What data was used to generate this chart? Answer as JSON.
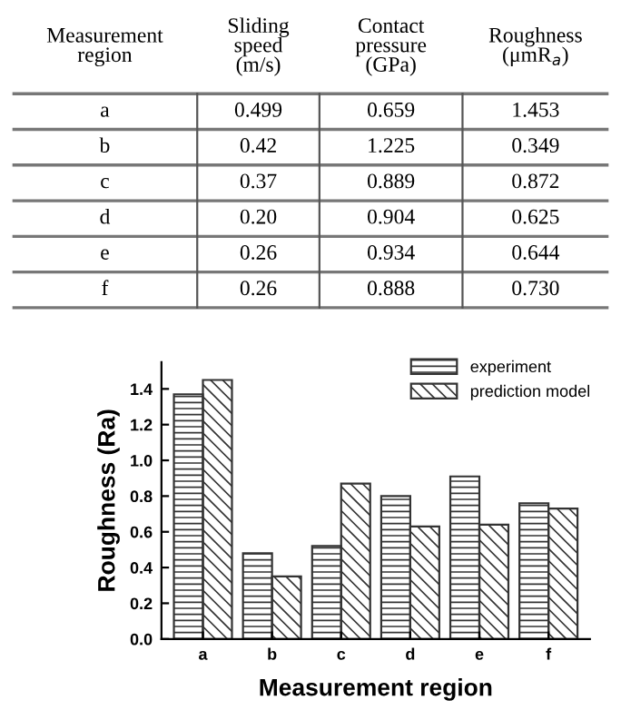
{
  "chart_data": [
    {
      "type": "other",
      "annotations": [
        "Measurement\nregion",
        "Sliding\nspeed\n(m/s)",
        "Contact\npressure\n(GPa)",
        "Roughness\n(μmR$_{a}$)",
        "a",
        "0.499",
        "0.659",
        "1.453",
        "b",
        "0.42",
        "1.225",
        "0.349",
        "c",
        "0.37",
        "0.889",
        "0.872",
        "d",
        "0.20",
        "0.904",
        "0.625",
        "e",
        "0.26",
        "0.934",
        "0.644",
        "f",
        "0.26",
        "0.888",
        "0.730"
      ]
    },
    {
      "type": "bar",
      "xlabel": "Measurement region",
      "ylabel": "Roughness (Ra)",
      "categories": [
        "a",
        "b",
        "c",
        "d",
        "e",
        "f"
      ],
      "series": [
        {
          "name": "experiment",
          "color": "#333333",
          "values": [
            1.37,
            0.48,
            0.52,
            0.8,
            0.91,
            0.76
          ]
        },
        {
          "name": "prediction model",
          "color": "#333333",
          "values": [
            1.45,
            0.35,
            0.87,
            0.63,
            0.64,
            0.73
          ]
        }
      ],
      "ylim": [
        0,
        1.55
      ],
      "yticks": [
        {
          "value": 0,
          "label": "0.0"
        },
        0.2,
        0.4,
        0.6,
        0.8,
        {
          "value": 1,
          "label": "1.0"
        },
        1.2,
        1.4
      ],
      "legend": "top right",
      "grid": false
    }
  ]
}
